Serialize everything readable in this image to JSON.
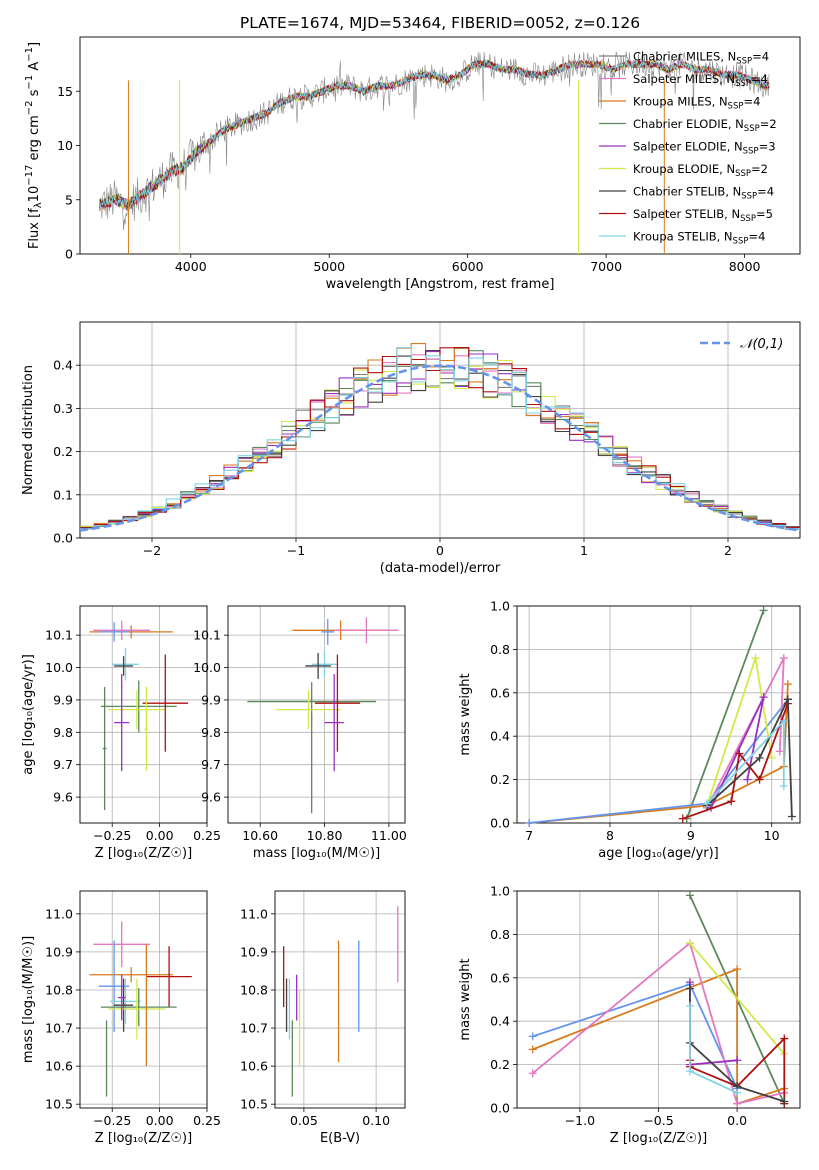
{
  "figure_title": "PLATE=1674, MJD=53464, FIBERID=0052, z=0.126",
  "chart_data": [
    {
      "id": "spectrum",
      "type": "line",
      "xlabel": "wavelength [Angstrom, rest frame]",
      "ylabel": "Flux [f_λ 10⁻¹⁷ erg cm⁻² s⁻¹ A⁻¹]",
      "xlim": [
        3200,
        8400
      ],
      "ylim": [
        0,
        20
      ],
      "xticks": [
        4000,
        5000,
        6000,
        7000,
        8000
      ],
      "yticks": [
        0,
        5,
        10,
        15
      ],
      "grid": false,
      "legend_loc": "right",
      "data_x": [
        3350,
        3450,
        3550,
        3650,
        3750,
        3850,
        3950,
        4050,
        4150,
        4250,
        4350,
        4450,
        4550,
        4650,
        4750,
        4850,
        4950,
        5050,
        5150,
        5250,
        5350,
        5450,
        5550,
        5650,
        5750,
        5850,
        5950,
        6050,
        6150,
        6250,
        6350,
        6450,
        6550,
        6650,
        6750,
        6850,
        6950,
        7050,
        7150,
        7250,
        7350,
        7450,
        7550,
        7650,
        7750,
        7850,
        7950,
        8050,
        8150
      ],
      "data_y": [
        4.5,
        5.0,
        4.5,
        5.5,
        6.5,
        7.5,
        8.0,
        9.5,
        10.5,
        11.5,
        12.0,
        12.5,
        13.0,
        14.0,
        14.5,
        14.5,
        15.0,
        15.5,
        15.5,
        15.0,
        15.5,
        15.5,
        16.0,
        16.5,
        16.5,
        16.0,
        16.5,
        17.5,
        17.5,
        17.0,
        17.0,
        16.5,
        16.5,
        17.0,
        17.5,
        17.5,
        17.5,
        17.0,
        17.5,
        17.5,
        17.5,
        17.0,
        17.5,
        17.0,
        17.0,
        16.5,
        16.5,
        16.0,
        15.5
      ],
      "series": [
        {
          "name": "Chabrier MILES, N_SSP=4",
          "color": "#7f7f7f"
        },
        {
          "name": "Salpeter MILES, N_SSP=4",
          "color": "#e377c2"
        },
        {
          "name": "Kroupa MILES, N_SSP=4",
          "color": "#d97a1e"
        },
        {
          "name": "Chabrier ELODIE, N_SSP=2",
          "color": "#5a8a5a"
        },
        {
          "name": "Salpeter ELODIE, N_SSP=3",
          "color": "#9b30c0"
        },
        {
          "name": "Kroupa ELODIE, N_SSP=2",
          "color": "#d4e84a"
        },
        {
          "name": "Chabrier STELIB, N_SSP=4",
          "color": "#404040"
        },
        {
          "name": "Salpeter STELIB, N_SSP=5",
          "color": "#b01010"
        },
        {
          "name": "Kroupa STELIB, N_SSP=4",
          "color": "#7ed4e6"
        }
      ]
    },
    {
      "id": "residuals",
      "type": "histogram",
      "xlabel": "(data-model)/error",
      "ylabel": "Normed distribution",
      "xlim": [
        -2.5,
        2.5
      ],
      "ylim": [
        0,
        0.5
      ],
      "xticks": [
        -2,
        -1,
        0,
        1,
        2
      ],
      "yticks": [
        0.0,
        0.1,
        0.2,
        0.3,
        0.4
      ],
      "grid": true,
      "legend": "𝒩(0,1)",
      "legend_loc": "upper right",
      "bin_width": 0.1,
      "bin_start": -2.5,
      "histogram_colors": [
        "#7f7f7f",
        "#e377c2",
        "#d97a1e",
        "#5a8a5a",
        "#9b30c0",
        "#d4e84a",
        "#404040",
        "#b01010",
        "#7ed4e6"
      ],
      "curve_color": "#6495ed"
    },
    {
      "id": "age_vs_z",
      "type": "errorbar",
      "xlabel": "Z [log₁₀(Z/Z☉)]",
      "ylabel": "age  [log₁₀(age/yr)]",
      "xlim": [
        -0.42,
        0.25
      ],
      "ylim": [
        9.52,
        10.19
      ],
      "xticks": [
        -0.25,
        0.0,
        0.25
      ],
      "xticklabels": [
        "−0.25",
        "0.00",
        "0.25"
      ],
      "yticks": [
        9.6,
        9.7,
        9.8,
        9.9,
        10.0,
        10.1
      ],
      "grid": true,
      "points": [
        {
          "x": -0.15,
          "y": 10.11,
          "xerr": 0.22,
          "yerr": 0.02,
          "color": "#d97a1e"
        },
        {
          "x": -0.2,
          "y": 10.115,
          "xerr": 0.15,
          "yerr": 0.03,
          "color": "#e377c2"
        },
        {
          "x": -0.24,
          "y": 10.11,
          "xerr": 0.08,
          "yerr": 0.03,
          "color": "#6495ed"
        },
        {
          "x": -0.18,
          "y": 10.01,
          "xerr": 0.07,
          "yerr": 0.05,
          "color": "#7ed4e6"
        },
        {
          "x": -0.19,
          "y": 10.005,
          "xerr": 0.05,
          "yerr": 0.03,
          "color": "#404040"
        },
        {
          "x": -0.11,
          "y": 9.88,
          "xerr": 0.2,
          "yerr": 0.08,
          "color": "#5a8a5a"
        },
        {
          "x": -0.12,
          "y": 9.87,
          "xerr": 0.15,
          "yerr": 0.06,
          "color": "#d4e84a"
        },
        {
          "x": 0.03,
          "y": 9.89,
          "xerr": 0.12,
          "yerr": 0.15,
          "color": "#b01010"
        },
        {
          "x": -0.2,
          "y": 9.83,
          "xerr": 0.04,
          "yerr": 0.15,
          "color": "#9b30c0"
        },
        {
          "x": -0.29,
          "y": 9.75,
          "xerr": 0.01,
          "yerr": 0.19,
          "color": "#5a8a5a"
        },
        {
          "x": -0.07,
          "y": 9.81,
          "xerr": 0.01,
          "yerr": 0.13,
          "color": "#d4e84a"
        }
      ]
    },
    {
      "id": "age_vs_mass",
      "type": "errorbar",
      "xlabel": "mass [log₁₀(M/M☉)]",
      "xlim": [
        10.5,
        11.05
      ],
      "ylim": [
        9.52,
        10.19
      ],
      "xticks": [
        10.6,
        10.8,
        11.0
      ],
      "yticks": [
        9.6,
        9.7,
        9.8,
        9.9,
        10.0,
        10.1
      ],
      "grid": true,
      "points": [
        {
          "x": 10.85,
          "y": 10.115,
          "xerr": 0.15,
          "yerr": 0.03,
          "color": "#d97a1e"
        },
        {
          "x": 10.93,
          "y": 10.115,
          "xerr": 0.1,
          "yerr": 0.04,
          "color": "#e377c2"
        },
        {
          "x": 10.81,
          "y": 10.11,
          "xerr": 0.02,
          "yerr": 0.04,
          "color": "#6495ed"
        },
        {
          "x": 10.8,
          "y": 10.01,
          "xerr": 0.04,
          "yerr": 0.04,
          "color": "#7ed4e6"
        },
        {
          "x": 10.78,
          "y": 10.005,
          "xerr": 0.04,
          "yerr": 0.04,
          "color": "#404040"
        },
        {
          "x": 10.76,
          "y": 9.895,
          "xerr": 0.2,
          "yerr": 0.06,
          "color": "#5a8a5a"
        },
        {
          "x": 10.75,
          "y": 9.87,
          "xerr": 0.1,
          "yerr": 0.06,
          "color": "#d4e84a"
        },
        {
          "x": 10.84,
          "y": 9.89,
          "xerr": 0.07,
          "yerr": 0.15,
          "color": "#b01010"
        },
        {
          "x": 10.83,
          "y": 9.83,
          "xerr": 0.03,
          "yerr": 0.15,
          "color": "#9b30c0"
        },
        {
          "x": 10.76,
          "y": 9.7,
          "xerr": 0.0,
          "yerr": 0.15,
          "color": "#5a8a5a"
        }
      ]
    },
    {
      "id": "weight_vs_age",
      "type": "line",
      "xlabel": "age  [log₁₀(age/yr)]",
      "ylabel": "mass weight",
      "xlim": [
        6.85,
        10.35
      ],
      "ylim": [
        0,
        1
      ],
      "xticks": [
        7,
        8,
        9,
        10
      ],
      "yticks": [
        0.0,
        0.2,
        0.4,
        0.6,
        0.8,
        1.0
      ],
      "grid": true,
      "series": [
        {
          "color": "#5a8a5a",
          "points": [
            [
              8.95,
              0.02
            ],
            [
              9.9,
              0.98
            ]
          ]
        },
        {
          "color": "#d97a1e",
          "points": [
            [
              7.0,
              0.0
            ],
            [
              9.2,
              0.08
            ],
            [
              10.15,
              0.26
            ],
            [
              10.2,
              0.64
            ]
          ]
        },
        {
          "color": "#6495ed",
          "points": [
            [
              7.0,
              0.0
            ],
            [
              9.2,
              0.09
            ],
            [
              10.2,
              0.57
            ]
          ]
        },
        {
          "color": "#e377c2",
          "points": [
            [
              9.2,
              0.07
            ],
            [
              10.15,
              0.76
            ],
            [
              10.1,
              0.33
            ]
          ]
        },
        {
          "color": "#d4e84a",
          "points": [
            [
              9.2,
              0.08
            ],
            [
              9.8,
              0.76
            ],
            [
              10.0,
              0.3
            ]
          ]
        },
        {
          "color": "#9b30c0",
          "points": [
            [
              9.25,
              0.07
            ],
            [
              9.9,
              0.58
            ],
            [
              9.7,
              0.2
            ]
          ]
        },
        {
          "color": "#b01010",
          "points": [
            [
              8.9,
              0.02
            ],
            [
              9.5,
              0.1
            ],
            [
              9.6,
              0.32
            ],
            [
              9.85,
              0.2
            ],
            [
              10.2,
              0.55
            ]
          ]
        },
        {
          "color": "#404040",
          "points": [
            [
              9.2,
              0.08
            ],
            [
              9.85,
              0.3
            ],
            [
              10.2,
              0.57
            ],
            [
              10.25,
              0.03
            ]
          ]
        },
        {
          "color": "#7ed4e6",
          "points": [
            [
              9.2,
              0.09
            ],
            [
              10.15,
              0.47
            ],
            [
              10.15,
              0.17
            ]
          ]
        }
      ]
    },
    {
      "id": "mass_vs_z",
      "type": "errorbar",
      "xlabel": "Z [log₁₀(Z/Z☉)]",
      "ylabel": "mass [log₁₀(M/M☉)]",
      "xlim": [
        -0.42,
        0.25
      ],
      "ylim": [
        10.49,
        11.06
      ],
      "xticks": [
        -0.25,
        0.0,
        0.25
      ],
      "xticklabels": [
        "−0.25",
        "0.00",
        "0.25"
      ],
      "yticks": [
        10.5,
        10.6,
        10.7,
        10.8,
        10.9,
        11.0
      ],
      "grid": true,
      "points": [
        {
          "x": -0.2,
          "y": 10.92,
          "xerr": 0.15,
          "yerr": 0.06,
          "color": "#e377c2"
        },
        {
          "x": -0.15,
          "y": 10.84,
          "xerr": 0.22,
          "yerr": 0.02,
          "color": "#d97a1e"
        },
        {
          "x": 0.05,
          "y": 10.835,
          "xerr": 0.12,
          "yerr": 0.08,
          "color": "#b01010"
        },
        {
          "x": -0.24,
          "y": 10.81,
          "xerr": 0.08,
          "yerr": 0.12,
          "color": "#6495ed"
        },
        {
          "x": -0.18,
          "y": 10.77,
          "xerr": 0.08,
          "yerr": 0.06,
          "color": "#7ed4e6"
        },
        {
          "x": -0.19,
          "y": 10.76,
          "xerr": 0.05,
          "yerr": 0.07,
          "color": "#404040"
        },
        {
          "x": -0.11,
          "y": 10.755,
          "xerr": 0.2,
          "yerr": 0.05,
          "color": "#5a8a5a"
        },
        {
          "x": -0.12,
          "y": 10.75,
          "xerr": 0.15,
          "yerr": 0.08,
          "color": "#d4e84a"
        },
        {
          "x": -0.2,
          "y": 10.78,
          "xerr": 0.02,
          "yerr": 0.06,
          "color": "#9b30c0"
        },
        {
          "x": -0.28,
          "y": 10.62,
          "xerr": 0.0,
          "yerr": 0.1,
          "color": "#5a8a5a"
        },
        {
          "x": -0.07,
          "y": 10.76,
          "xerr": 0.0,
          "yerr": 0.16,
          "color": "#d97a1e"
        }
      ]
    },
    {
      "id": "ebv",
      "type": "errorbar",
      "xlabel": "E(B-V)",
      "xlim": [
        0.03,
        0.12
      ],
      "ylim": [
        10.49,
        11.06
      ],
      "xticks": [
        0.05,
        0.1
      ],
      "xticklabels": [
        "0.05",
        "0.10"
      ],
      "yticks": [
        10.5,
        10.6,
        10.7,
        10.8,
        10.9,
        11.0
      ],
      "grid": true,
      "points": [
        {
          "x": 0.036,
          "y": 10.835,
          "yerr": 0.08,
          "color": "#b01010"
        },
        {
          "x": 0.038,
          "y": 10.76,
          "yerr": 0.07,
          "color": "#404040"
        },
        {
          "x": 0.04,
          "y": 10.75,
          "yerr": 0.08,
          "color": "#7ed4e6"
        },
        {
          "x": 0.042,
          "y": 10.62,
          "yerr": 0.1,
          "color": "#5a8a5a"
        },
        {
          "x": 0.045,
          "y": 10.78,
          "yerr": 0.06,
          "color": "#9b30c0"
        },
        {
          "x": 0.047,
          "y": 10.7,
          "yerr": 0.1,
          "color": "#d4e84a"
        },
        {
          "x": 0.074,
          "y": 10.77,
          "yerr": 0.16,
          "color": "#d97a1e"
        },
        {
          "x": 0.088,
          "y": 10.81,
          "yerr": 0.12,
          "color": "#6495ed"
        },
        {
          "x": 0.115,
          "y": 10.92,
          "yerr": 0.1,
          "color": "#e377c2"
        }
      ]
    },
    {
      "id": "weight_vs_z",
      "type": "line",
      "xlabel": "Z [log₁₀(Z/Z☉)]",
      "ylabel": "mass weight",
      "xlim": [
        -1.4,
        0.4
      ],
      "ylim": [
        0,
        1
      ],
      "xticks": [
        -1.0,
        -0.5,
        0.0
      ],
      "xticklabels": [
        "−1.0",
        "−0.5",
        "0.0"
      ],
      "yticks": [
        0.0,
        0.2,
        0.4,
        0.6,
        0.8,
        1.0
      ],
      "grid": true,
      "series": [
        {
          "color": "#5a8a5a",
          "points": [
            [
              -0.3,
              0.98
            ],
            [
              0.3,
              0.02
            ]
          ]
        },
        {
          "color": "#d97a1e",
          "points": [
            [
              -1.3,
              0.27
            ],
            [
              0.0,
              0.64
            ],
            [
              0.0,
              0.02
            ],
            [
              0.3,
              0.09
            ]
          ]
        },
        {
          "color": "#6495ed",
          "points": [
            [
              -1.3,
              0.33
            ],
            [
              -0.3,
              0.57
            ],
            [
              0.0,
              0.09
            ]
          ]
        },
        {
          "color": "#e377c2",
          "points": [
            [
              -1.3,
              0.16
            ],
            [
              -0.3,
              0.76
            ],
            [
              0.0,
              0.02
            ],
            [
              0.3,
              0.07
            ]
          ]
        },
        {
          "color": "#d4e84a",
          "points": [
            [
              -0.3,
              0.76
            ],
            [
              0.3,
              0.25
            ]
          ]
        },
        {
          "color": "#9b30c0",
          "points": [
            [
              -0.3,
              0.58
            ],
            [
              -0.3,
              0.2
            ],
            [
              0.0,
              0.22
            ]
          ]
        },
        {
          "color": "#b01010",
          "points": [
            [
              -0.3,
              0.22
            ],
            [
              -0.3,
              0.19
            ],
            [
              0.0,
              0.1
            ],
            [
              0.3,
              0.32
            ],
            [
              0.3,
              0.02
            ]
          ]
        },
        {
          "color": "#404040",
          "points": [
            [
              -0.3,
              0.55
            ],
            [
              -0.3,
              0.3
            ],
            [
              0.0,
              0.1
            ],
            [
              0.3,
              0.03
            ]
          ]
        },
        {
          "color": "#7ed4e6",
          "points": [
            [
              -0.3,
              0.47
            ],
            [
              -0.3,
              0.17
            ],
            [
              0.0,
              0.07
            ]
          ]
        }
      ]
    }
  ]
}
